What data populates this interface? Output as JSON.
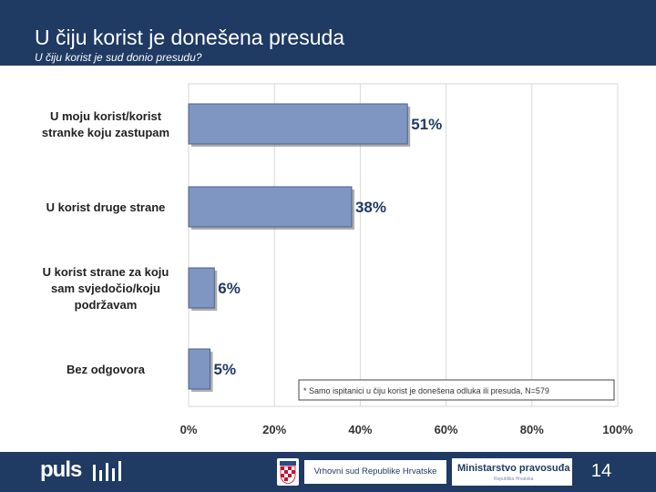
{
  "header": {
    "title": "U čiju korist je donešena presuda",
    "subtitle": "U čiju korist je sud donio presudu?"
  },
  "chart_data": {
    "type": "bar",
    "orientation": "horizontal",
    "categories": [
      [
        "U moju korist/korist",
        "stranke koju zastupam"
      ],
      [
        "U korist druge strane"
      ],
      [
        "U korist strane za koju",
        "sam svjedočio/koju",
        "podržavam"
      ],
      [
        "Bez odgovora"
      ]
    ],
    "values": [
      51,
      38,
      6,
      5
    ],
    "value_labels": [
      "51%",
      "38%",
      "6%",
      "5%"
    ],
    "xlim": [
      0,
      100
    ],
    "xticks": [
      0,
      20,
      40,
      60,
      80,
      100
    ],
    "xtick_labels": [
      "0%",
      "20%",
      "40%",
      "60%",
      "80%",
      "100%"
    ],
    "grid": true,
    "bar_color": "#7f96c3",
    "annotation": "* Samo ispitanici u čiju korist je donešena odluka ili presuda, N=579"
  },
  "footer": {
    "logo": "puls",
    "court": "Vrhovni sud Republike Hrvatske",
    "ministry": "Ministarstvo pravosuđa",
    "ministry_sub": "Republika Hrvatska",
    "page_number": "14"
  }
}
